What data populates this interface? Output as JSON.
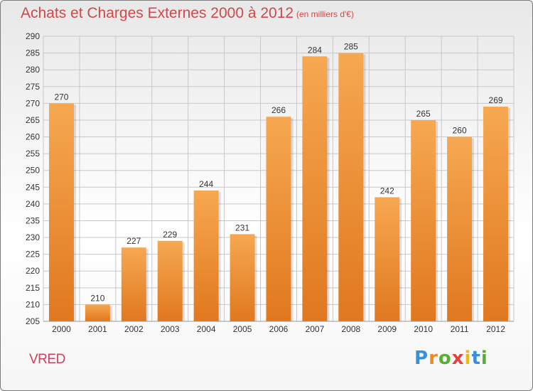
{
  "colors": {
    "title": "#d04848",
    "bar_light": "#f6a851",
    "bar_dark": "#e0781e",
    "grid": "#c8c8c8",
    "axis_text": "#333333"
  },
  "header": {
    "title": "Achats et Charges Externes 2000 à 2012",
    "subtitle": "(en milliers d'€)"
  },
  "footer": {
    "location": "VRED",
    "brand_letters": [
      {
        "ch": "P",
        "color": "#3a8fd6"
      },
      {
        "ch": "r",
        "color": "#f08a1c"
      },
      {
        "ch": "o",
        "color": "#58b030"
      },
      {
        "ch": "x",
        "color": "#e84040"
      },
      {
        "ch": "i",
        "color": "#f0b810"
      },
      {
        "ch": "t",
        "color": "#3a8fd6"
      },
      {
        "ch": "i",
        "color": "#58b030"
      }
    ]
  },
  "chart_data": {
    "type": "bar",
    "title": "Achats et Charges Externes 2000 à 2012",
    "subtitle": "(en milliers d'€)",
    "categories": [
      "2000",
      "2001",
      "2002",
      "2003",
      "2004",
      "2005",
      "2006",
      "2007",
      "2008",
      "2009",
      "2010",
      "2011",
      "2012"
    ],
    "values": [
      270,
      210,
      227,
      229,
      244,
      231,
      266,
      284,
      285,
      242,
      265,
      260,
      269
    ],
    "ylim": [
      205,
      290
    ],
    "yticks": [
      205,
      210,
      215,
      220,
      225,
      230,
      235,
      240,
      245,
      250,
      255,
      260,
      265,
      270,
      275,
      280,
      285,
      290
    ],
    "grid": true,
    "legend": "none"
  }
}
